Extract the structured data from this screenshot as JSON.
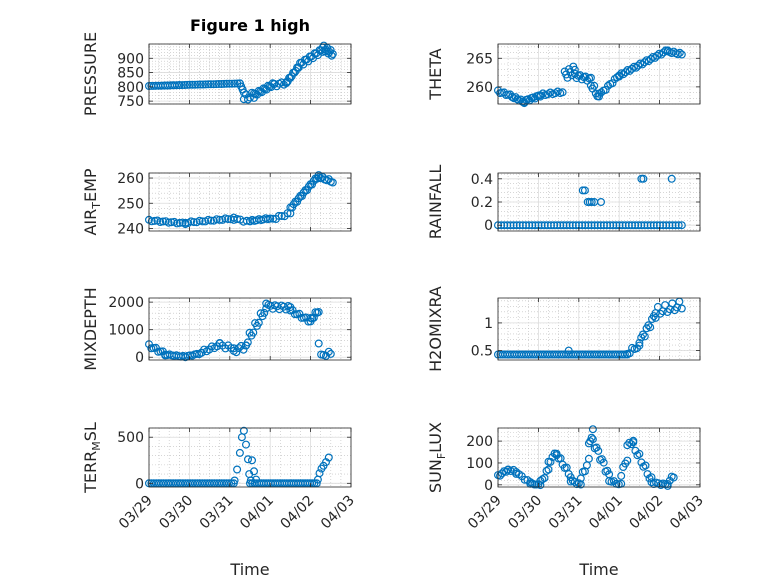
{
  "figure": {
    "title": "Figure 1 high",
    "x_label": "Time",
    "x_ticks": [
      "03/29",
      "03/30",
      "03/31",
      "04/01",
      "04/02",
      "04/03"
    ],
    "marker_color": "#0072BD"
  },
  "chart_data": [
    {
      "type": "scatter",
      "ylabel": "PRESSURE",
      "title": "Figure 1 high",
      "xlim": [
        0,
        5
      ],
      "ylim": [
        740,
        950
      ],
      "yticks": [
        750,
        800,
        850,
        900
      ],
      "grid": true,
      "minor_grid": true,
      "segments": [
        [
          0.0,
          0.75,
          803,
          806,
          0,
          14
        ],
        [
          0.75,
          2.25,
          806,
          812,
          0,
          24
        ],
        [
          2.25,
          2.35,
          812,
          780,
          0,
          4
        ],
        [
          2.35,
          2.6,
          760,
          770,
          12,
          6
        ],
        [
          2.6,
          3.1,
          772,
          810,
          6,
          14
        ],
        [
          3.1,
          3.4,
          806,
          815,
          6,
          6
        ],
        [
          3.4,
          3.7,
          815,
          870,
          4,
          10
        ],
        [
          3.7,
          4.3,
          875,
          930,
          8,
          16
        ],
        [
          4.3,
          4.55,
          938,
          915,
          10,
          10
        ]
      ]
    },
    {
      "type": "scatter",
      "ylabel": "THETA",
      "xlim": [
        0,
        5
      ],
      "ylim": [
        257,
        267.5
      ],
      "yticks": [
        260,
        265
      ],
      "grid": true,
      "minor_grid": true,
      "segments": [
        [
          0.0,
          0.35,
          259.2,
          258.4,
          0.2,
          8
        ],
        [
          0.35,
          0.65,
          258.3,
          257.3,
          0.2,
          8
        ],
        [
          0.65,
          1.05,
          257.5,
          258.5,
          0.2,
          10
        ],
        [
          1.05,
          1.6,
          258.6,
          259.1,
          0.2,
          10
        ],
        [
          1.65,
          1.9,
          262.0,
          263.0,
          0.8,
          8
        ],
        [
          1.9,
          2.3,
          262.0,
          261.3,
          0.4,
          10
        ],
        [
          2.3,
          2.5,
          260.5,
          258.2,
          0.6,
          6
        ],
        [
          2.5,
          3.0,
          258.5,
          262.0,
          0.2,
          10
        ],
        [
          3.0,
          4.2,
          262.0,
          266.4,
          0.2,
          24
        ],
        [
          4.2,
          4.55,
          266.2,
          265.7,
          0.2,
          8
        ]
      ]
    },
    {
      "type": "scatter",
      "ylabel": "AIR_TEMP",
      "xlim": [
        0,
        5
      ],
      "ylim": [
        239,
        262
      ],
      "yticks": [
        240,
        250,
        260
      ],
      "grid": true,
      "minor_grid": true,
      "segments": [
        [
          0.0,
          0.9,
          243.2,
          242.0,
          0.3,
          14
        ],
        [
          0.9,
          2.1,
          242.3,
          244.0,
          0.3,
          18
        ],
        [
          2.1,
          2.5,
          243.8,
          242.6,
          0.4,
          6
        ],
        [
          2.5,
          3.0,
          243.0,
          244.0,
          0.3,
          10
        ],
        [
          3.0,
          3.5,
          243.5,
          246.0,
          0.5,
          8
        ],
        [
          3.5,
          4.2,
          248.0,
          261.0,
          0.5,
          18
        ],
        [
          4.2,
          4.55,
          260.5,
          258.5,
          0.5,
          8
        ]
      ]
    },
    {
      "type": "scatter",
      "ylabel": "RAINFALL",
      "xlim": [
        0,
        5
      ],
      "ylim": [
        -0.05,
        0.45
      ],
      "yticks": [
        0,
        0.2,
        0.4
      ],
      "grid": true,
      "minor_grid": true,
      "segments": [
        [
          0.0,
          4.55,
          0,
          0,
          0,
          60
        ]
      ],
      "extra_points": [
        [
          2.1,
          0.3
        ],
        [
          2.15,
          0.3
        ],
        [
          2.22,
          0.2
        ],
        [
          2.27,
          0.2
        ],
        [
          2.32,
          0.2
        ],
        [
          2.38,
          0.2
        ],
        [
          2.55,
          0.2
        ],
        [
          3.55,
          0.4
        ],
        [
          3.6,
          0.4
        ],
        [
          4.3,
          0.4
        ]
      ]
    },
    {
      "type": "scatter",
      "ylabel": "MIXDEPTH",
      "xlim": [
        0,
        5
      ],
      "ylim": [
        -100,
        2150
      ],
      "yticks": [
        0,
        1000,
        2000
      ],
      "grid": true,
      "minor_grid": true,
      "segments": [
        [
          0.0,
          0.4,
          420,
          120,
          60,
          8
        ],
        [
          0.4,
          0.9,
          100,
          20,
          20,
          10
        ],
        [
          0.9,
          1.3,
          20,
          150,
          20,
          8
        ],
        [
          1.3,
          1.75,
          180,
          450,
          60,
          8
        ],
        [
          1.75,
          2.1,
          450,
          300,
          80,
          6
        ],
        [
          2.1,
          2.4,
          250,
          400,
          100,
          6
        ],
        [
          2.4,
          2.9,
          500,
          1800,
          150,
          12
        ],
        [
          2.9,
          3.5,
          1850,
          1800,
          80,
          12
        ],
        [
          3.5,
          4.0,
          1700,
          1300,
          60,
          10
        ],
        [
          4.0,
          4.2,
          1350,
          1700,
          80,
          6
        ]
      ],
      "extra_points": [
        [
          4.2,
          500
        ],
        [
          4.26,
          100
        ],
        [
          4.32,
          80
        ],
        [
          4.38,
          50
        ],
        [
          4.45,
          200
        ],
        [
          4.5,
          120
        ]
      ]
    },
    {
      "type": "scatter",
      "ylabel": "H2OMIXRA",
      "xlim": [
        0,
        5
      ],
      "ylim": [
        0.33,
        1.45
      ],
      "yticks": [
        0.5,
        1
      ],
      "grid": true,
      "minor_grid": true,
      "segments": [
        [
          0.0,
          3.2,
          0.43,
          0.43,
          0,
          56
        ],
        [
          3.2,
          3.5,
          0.45,
          0.6,
          0.04,
          6
        ],
        [
          3.5,
          3.9,
          0.65,
          1.15,
          0.06,
          10
        ],
        [
          3.9,
          4.55,
          1.2,
          1.32,
          0.08,
          12
        ]
      ],
      "extra_points": [
        [
          1.75,
          0.5
        ]
      ]
    },
    {
      "type": "scatter",
      "ylabel": "TERR_MSL",
      "xlim": [
        0,
        5
      ],
      "ylim": [
        -40,
        600
      ],
      "yticks": [
        0,
        500
      ],
      "grid": true,
      "minor_grid": true,
      "segments": [
        [
          0.0,
          2.1,
          0,
          0,
          0,
          36
        ],
        [
          2.5,
          4.15,
          0,
          0,
          0,
          30
        ]
      ],
      "extra_points": [
        [
          2.12,
          30
        ],
        [
          2.18,
          150
        ],
        [
          2.25,
          330
        ],
        [
          2.3,
          500
        ],
        [
          2.35,
          570
        ],
        [
          2.4,
          420
        ],
        [
          2.45,
          260
        ],
        [
          2.48,
          100
        ],
        [
          2.52,
          30
        ],
        [
          2.55,
          250
        ],
        [
          2.6,
          130
        ],
        [
          2.65,
          40
        ],
        [
          4.18,
          40
        ],
        [
          4.22,
          110
        ],
        [
          4.27,
          160
        ],
        [
          4.32,
          190
        ],
        [
          4.38,
          230
        ],
        [
          4.45,
          280
        ]
      ]
    },
    {
      "type": "scatter",
      "ylabel": "SUN_FLUX",
      "xlim": [
        0,
        5
      ],
      "ylim": [
        -10,
        260
      ],
      "yticks": [
        0,
        100,
        200
      ],
      "grid": true,
      "minor_grid": true,
      "segments": [
        [
          0.0,
          0.25,
          40,
          70,
          5,
          6
        ],
        [
          0.25,
          0.45,
          70,
          60,
          5,
          4
        ],
        [
          0.45,
          0.8,
          55,
          10,
          5,
          6
        ],
        [
          0.8,
          1.05,
          5,
          0,
          2,
          6
        ],
        [
          1.05,
          1.25,
          10,
          70,
          10,
          5
        ],
        [
          1.25,
          1.45,
          100,
          150,
          8,
          5
        ],
        [
          1.45,
          1.8,
          140,
          40,
          10,
          8
        ],
        [
          1.8,
          2.05,
          20,
          0,
          5,
          6
        ],
        [
          2.05,
          2.25,
          30,
          110,
          10,
          5
        ],
        [
          2.25,
          2.35,
          180,
          245,
          10,
          4
        ],
        [
          2.35,
          2.75,
          200,
          40,
          15,
          10
        ],
        [
          2.75,
          3.05,
          20,
          0,
          5,
          6
        ],
        [
          3.05,
          3.2,
          50,
          120,
          10,
          4
        ],
        [
          3.2,
          3.35,
          180,
          200,
          8,
          4
        ],
        [
          3.35,
          3.8,
          180,
          20,
          15,
          10
        ],
        [
          3.8,
          4.2,
          10,
          0,
          5,
          8
        ],
        [
          4.2,
          4.35,
          10,
          40,
          8,
          4
        ]
      ]
    }
  ]
}
